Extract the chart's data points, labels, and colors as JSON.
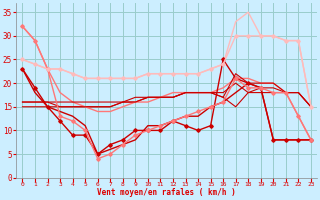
{
  "background_color": "#cceeff",
  "grid_color": "#99cccc",
  "xlabel": "Vent moyen/en rafales ( km/h )",
  "xlabel_color": "#dd0000",
  "tick_color": "#dd0000",
  "xlim": [
    -0.5,
    23.5
  ],
  "ylim": [
    0,
    37
  ],
  "xticks": [
    0,
    1,
    2,
    3,
    4,
    5,
    6,
    7,
    8,
    9,
    10,
    11,
    12,
    13,
    14,
    15,
    16,
    17,
    18,
    19,
    20,
    21,
    22,
    23
  ],
  "yticks": [
    0,
    5,
    10,
    15,
    20,
    25,
    30,
    35
  ],
  "series": [
    {
      "x": [
        0,
        1,
        2,
        3,
        4,
        5,
        6,
        7,
        8,
        9,
        10,
        11,
        12,
        13,
        14,
        15,
        16,
        17,
        18,
        19,
        20,
        21,
        22,
        23
      ],
      "y": [
        23,
        19,
        15,
        12,
        9,
        9,
        5,
        7,
        8,
        10,
        10,
        10,
        12,
        11,
        10,
        11,
        25,
        21,
        20,
        19,
        8,
        8,
        8,
        8
      ],
      "color": "#cc0000",
      "lw": 1.0,
      "marker": "D",
      "ms": 1.8,
      "zorder": 4
    },
    {
      "x": [
        0,
        1,
        2,
        3,
        4,
        5,
        6,
        7,
        8,
        9,
        10,
        11,
        12,
        13,
        14,
        15,
        16,
        17,
        18,
        19,
        20,
        21,
        22,
        23
      ],
      "y": [
        23,
        18,
        15,
        14,
        13,
        11,
        5,
        6,
        7,
        8,
        11,
        11,
        12,
        13,
        13,
        15,
        16,
        18,
        20,
        19,
        8,
        8,
        8,
        8
      ],
      "color": "#cc0000",
      "lw": 1.0,
      "marker": null,
      "ms": 0,
      "zorder": 3
    },
    {
      "x": [
        0,
        1,
        2,
        3,
        4,
        5,
        6,
        7,
        8,
        9,
        10,
        11,
        12,
        13,
        14,
        15,
        16,
        17,
        18,
        19,
        20,
        21,
        22,
        23
      ],
      "y": [
        32,
        29,
        23,
        13,
        12,
        10,
        4,
        5,
        7,
        9,
        10,
        11,
        12,
        13,
        14,
        15,
        16,
        21,
        19,
        19,
        18,
        18,
        13,
        8
      ],
      "color": "#ff7777",
      "lw": 1.0,
      "marker": "D",
      "ms": 1.8,
      "zorder": 4
    },
    {
      "x": [
        0,
        1,
        2,
        3,
        4,
        5,
        6,
        7,
        8,
        9,
        10,
        11,
        12,
        13,
        14,
        15,
        16,
        17,
        18,
        19,
        20,
        21,
        22,
        23
      ],
      "y": [
        32,
        29,
        23,
        18,
        16,
        15,
        14,
        14,
        15,
        16,
        16,
        17,
        18,
        18,
        18,
        18,
        19,
        21,
        21,
        20,
        20,
        18,
        13,
        8
      ],
      "color": "#ff7777",
      "lw": 1.0,
      "marker": null,
      "ms": 0,
      "zorder": 3
    },
    {
      "x": [
        0,
        1,
        2,
        3,
        4,
        5,
        6,
        7,
        8,
        9,
        10,
        11,
        12,
        13,
        14,
        15,
        16,
        17,
        18,
        19,
        20,
        21,
        22,
        23
      ],
      "y": [
        16,
        16,
        16,
        16,
        16,
        16,
        16,
        16,
        16,
        17,
        17,
        17,
        17,
        18,
        18,
        18,
        18,
        20,
        18,
        18,
        18,
        18,
        18,
        15
      ],
      "color": "#cc0000",
      "lw": 0.8,
      "marker": null,
      "ms": 0,
      "zorder": 3
    },
    {
      "x": [
        0,
        1,
        2,
        3,
        4,
        5,
        6,
        7,
        8,
        9,
        10,
        11,
        12,
        13,
        14,
        15,
        16,
        17,
        18,
        19,
        20,
        21,
        22,
        23
      ],
      "y": [
        16,
        16,
        16,
        15,
        15,
        15,
        15,
        15,
        16,
        16,
        17,
        17,
        17,
        18,
        18,
        18,
        17,
        22,
        20,
        20,
        20,
        18,
        18,
        15
      ],
      "color": "#cc0000",
      "lw": 0.8,
      "marker": null,
      "ms": 0,
      "zorder": 3
    },
    {
      "x": [
        0,
        1,
        2,
        3,
        4,
        5,
        6,
        7,
        8,
        9,
        10,
        11,
        12,
        13,
        14,
        15,
        16,
        17,
        18,
        19,
        20,
        21,
        22,
        23
      ],
      "y": [
        15,
        15,
        15,
        15,
        15,
        15,
        15,
        15,
        16,
        16,
        17,
        17,
        17,
        18,
        18,
        18,
        17,
        15,
        18,
        19,
        19,
        18,
        18,
        15
      ],
      "color": "#cc0000",
      "lw": 0.8,
      "marker": null,
      "ms": 0,
      "zorder": 2
    },
    {
      "x": [
        0,
        1,
        2,
        3,
        4,
        5,
        6,
        7,
        8,
        9,
        10,
        11,
        12,
        13,
        14,
        15,
        16,
        17,
        18,
        19,
        20,
        21,
        22,
        23
      ],
      "y": [
        25,
        24,
        23,
        23,
        22,
        21,
        21,
        21,
        21,
        21,
        22,
        22,
        22,
        22,
        22,
        23,
        24,
        30,
        30,
        30,
        30,
        29,
        29,
        15
      ],
      "color": "#ffbbbb",
      "lw": 1.0,
      "marker": "D",
      "ms": 1.8,
      "zorder": 4
    },
    {
      "x": [
        0,
        1,
        2,
        3,
        4,
        5,
        6,
        7,
        8,
        9,
        10,
        11,
        12,
        13,
        14,
        15,
        16,
        17,
        18,
        19,
        20,
        21,
        22,
        23
      ],
      "y": [
        25,
        24,
        23,
        23,
        22,
        21,
        21,
        21,
        21,
        21,
        22,
        22,
        22,
        22,
        22,
        23,
        24,
        33,
        35,
        30,
        30,
        29,
        29,
        15
      ],
      "color": "#ffbbbb",
      "lw": 1.0,
      "marker": null,
      "ms": 0,
      "zorder": 2
    }
  ]
}
